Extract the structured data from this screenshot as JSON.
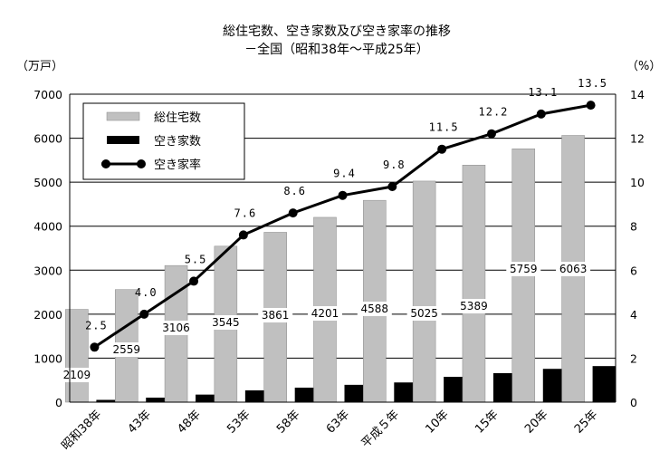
{
  "chart_data": {
    "type": "bar",
    "title": "総住宅数、空き家数及び空き家率の推移",
    "subtitle": "－全国（昭和38年～平成25年）",
    "ylabel_left": "（万戸）",
    "ylabel_right": "（%）",
    "categories": [
      "昭和38年",
      "43年",
      "48年",
      "53年",
      "58年",
      "63年",
      "平成５年",
      "10年",
      "15年",
      "20年",
      "25年"
    ],
    "ylim_left": [
      0,
      7000
    ],
    "yticks_left": [
      "0",
      "1000",
      "2000",
      "3000",
      "4000",
      "5000",
      "6000",
      "7000"
    ],
    "ylim_right": [
      0,
      14
    ],
    "yticks_right": [
      "0",
      "2",
      "4",
      "6",
      "8",
      "10",
      "12",
      "14"
    ],
    "grid": true,
    "legend_position": "top-left",
    "series": [
      {
        "name": "総住宅数",
        "type": "bar",
        "axis": "left",
        "color": "#c0c0c0",
        "values": [
          2109,
          2559,
          3106,
          3545,
          3861,
          4201,
          4588,
          5025,
          5389,
          5759,
          6063
        ],
        "labels": [
          "2109",
          "2559",
          "3106",
          "3545",
          "3861",
          "4201",
          "4588",
          "5025",
          "5389",
          "5759",
          "6063"
        ]
      },
      {
        "name": "空き家数",
        "type": "bar",
        "axis": "left",
        "color": "#000000",
        "values": [
          52,
          103,
          172,
          268,
          330,
          394,
          448,
          576,
          659,
          757,
          820
        ]
      },
      {
        "name": "空き家率",
        "type": "line",
        "axis": "right",
        "color": "#000000",
        "values": [
          2.5,
          4.0,
          5.5,
          7.6,
          8.6,
          9.4,
          9.8,
          11.5,
          12.2,
          13.1,
          13.5
        ],
        "labels": [
          "2.5",
          "4.0",
          "5.5",
          "7.6",
          "8.6",
          "9.4",
          "9.8",
          "11.5",
          "12.2",
          "13.1",
          "13.5"
        ]
      }
    ]
  }
}
